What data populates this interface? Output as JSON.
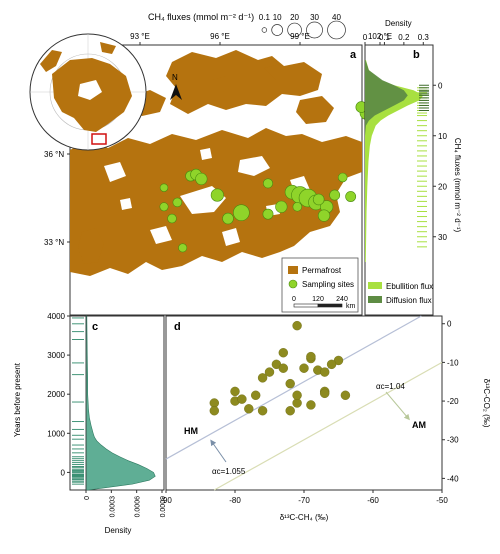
{
  "panel_a": {
    "label": "a",
    "legend_title": "CH₄ fluxes (mmol m⁻² d⁻¹)",
    "size_values": [
      "0.1",
      "10",
      "20",
      "30",
      "40"
    ],
    "lon_ticks": [
      "93 °E",
      "96 °E",
      "99 °E",
      "102 °E"
    ],
    "lat_ticks": [
      "36 °N",
      "33 °N"
    ],
    "north_label": "N",
    "legend": {
      "permafrost": "Permafrost",
      "sites": "Sampling sites"
    },
    "scale": {
      "ticks": [
        "0",
        "120",
        "240"
      ],
      "unit": "km"
    }
  },
  "panel_b": {
    "label": "b",
    "density_title": "Density",
    "density_ticks": [
      "0",
      "0.1",
      "0.2",
      "0.3"
    ],
    "y_label": "CH₄ fluxes (mmol m⁻² d⁻¹)",
    "y_ticks": [
      "0",
      "10",
      "20",
      "30"
    ],
    "legend": {
      "ebullition": "Ebullition flux",
      "diffusion": "Diffusion flux"
    }
  },
  "panel_c": {
    "label": "c",
    "y_label": "Years before present",
    "y_ticks": [
      "4000",
      "3000",
      "2000",
      "1000",
      "0"
    ],
    "x_label": "Density",
    "x_ticks": [
      "0",
      "0.0003",
      "0.0006",
      "0.0009"
    ]
  },
  "panel_d": {
    "label": "d",
    "x_label": "δ¹³C-CH₄ (‰)",
    "x_ticks": [
      "-90",
      "-80",
      "-70",
      "-60",
      "-50"
    ],
    "y_label": "δ¹³C-CO₂ (‰)",
    "y_ticks": [
      "0",
      "-10",
      "-20",
      "-30",
      "-40"
    ],
    "ann_hm": "HM",
    "ann_am": "AM",
    "ann_alpha_hm": "αc=1.055",
    "ann_alpha_am": "αc=1.04"
  },
  "chart_data": [
    {
      "type": "scatter",
      "panel": "d",
      "xlim": [
        -90,
        -50
      ],
      "ylim": [
        -43,
        2
      ],
      "x": [
        -83,
        -80,
        -83,
        -80,
        -77,
        -78,
        -71,
        -71,
        -74,
        -73,
        -75,
        -72,
        -76,
        -79,
        -76,
        -69,
        -70,
        -69,
        -68,
        -65,
        -67,
        -64,
        -72,
        -71,
        -67,
        -66,
        -67,
        -69,
        -73
      ],
      "y": [
        -20.5,
        -20,
        -22.5,
        -17.5,
        -18.5,
        -22,
        -20.5,
        -18.5,
        -10.5,
        -7.5,
        -12.5,
        -15.5,
        -14,
        -19.5,
        -22.5,
        -9,
        -11.5,
        -8.5,
        -12,
        -9.5,
        -17.5,
        -18.5,
        -22.5,
        -0.5,
        -12.5,
        -10.5,
        -18,
        -21,
        -11.5
      ],
      "lines": [
        {
          "alpha_c": "1.055",
          "slope": 1,
          "intercept": 55
        },
        {
          "alpha_c": "1.04",
          "slope": 1,
          "intercept": 40
        }
      ]
    },
    {
      "type": "area",
      "panel": "c",
      "ylim": [
        -450,
        4000
      ],
      "xlim": [
        0,
        0.0009
      ],
      "years": [
        -450,
        -400,
        -300,
        -200,
        -100,
        0,
        100,
        200,
        300,
        400,
        500,
        600,
        700,
        800,
        900,
        1000,
        1200,
        1400,
        1600,
        1800,
        2000,
        2400,
        3000,
        4000
      ],
      "density": [
        3e-05,
        0.0002,
        0.00055,
        0.00075,
        0.00082,
        0.0008,
        0.00072,
        0.00062,
        0.0005,
        0.0004,
        0.00031,
        0.00024,
        0.00018,
        0.00013,
        0.0001,
        8.5e-05,
        6e-05,
        4e-05,
        3e-05,
        2.5e-05,
        2e-05,
        2e-05,
        1.5e-05,
        1e-05
      ],
      "rug_years": [
        -300,
        -250,
        -220,
        -180,
        -150,
        -120,
        -100,
        -80,
        -60,
        -40,
        0,
        20,
        50,
        80,
        120,
        150,
        200,
        250,
        300,
        350,
        400,
        500,
        600,
        700,
        850,
        950,
        1100,
        1300,
        1800,
        2500,
        2800,
        3400,
        3600,
        3800,
        3950
      ]
    },
    {
      "type": "area",
      "panel": "b",
      "ylim": [
        -5,
        35
      ],
      "xlim": [
        0,
        0.35
      ],
      "y": [
        -5,
        -3,
        -1,
        0,
        1,
        2,
        3,
        4,
        5,
        6,
        7,
        8,
        10,
        12,
        15,
        20,
        25,
        30,
        35
      ],
      "series": [
        {
          "name": "Ebullition flux",
          "density": [
            0.005,
            0.02,
            0.08,
            0.15,
            0.25,
            0.3,
            0.28,
            0.22,
            0.17,
            0.12,
            0.08,
            0.055,
            0.035,
            0.025,
            0.018,
            0.012,
            0.008,
            0.006,
            0.004
          ]
        },
        {
          "name": "Diffusion flux",
          "density": [
            0.003,
            0.02,
            0.09,
            0.15,
            0.2,
            0.22,
            0.2,
            0.15,
            0.1,
            0.05,
            0.02,
            0.005,
            0,
            0,
            0,
            0,
            0,
            0,
            0
          ]
        }
      ],
      "rug_ebullition": [
        0.5,
        1,
        1.5,
        2,
        2.5,
        3,
        3.5,
        4,
        4.5,
        5,
        5.5,
        6,
        7,
        8,
        9,
        10,
        11,
        12,
        13,
        14,
        15,
        16,
        17,
        18,
        19,
        20,
        21,
        22,
        23,
        24,
        25,
        26,
        27,
        28,
        29,
        30,
        31,
        32
      ],
      "rug_diffusion": [
        0,
        0.5,
        1,
        1.3,
        1.7,
        2,
        2.5,
        3,
        3.5,
        4,
        4.5,
        5
      ]
    },
    {
      "type": "scatter",
      "panel": "a",
      "lon": [
        93.9,
        94.4,
        94.9,
        95.1,
        95.3,
        94.6,
        95.9,
        96.3,
        96.8,
        97.8,
        98.3,
        98.7,
        99.0,
        99.3,
        99.6,
        100.0,
        100.3,
        100.6,
        99.7,
        98.9,
        99.9,
        100.9,
        101.5,
        101.3,
        101.6,
        93.9,
        94.2,
        97.8
      ],
      "lat": [
        34.85,
        34.35,
        35.25,
        35.3,
        35.15,
        32.8,
        34.6,
        33.8,
        34.0,
        33.95,
        34.2,
        34.7,
        34.6,
        34.5,
        34.35,
        34.2,
        34.6,
        35.2,
        34.45,
        34.2,
        33.9,
        34.55,
        37.4,
        37.6,
        37.2,
        34.2,
        33.8,
        35.0
      ],
      "flux": [
        3,
        5,
        8,
        10,
        12,
        4,
        15,
        10,
        30,
        8,
        12,
        20,
        35,
        40,
        25,
        15,
        8,
        5,
        10,
        5,
        12,
        8,
        18,
        10,
        6,
        4,
        5,
        6
      ]
    }
  ]
}
